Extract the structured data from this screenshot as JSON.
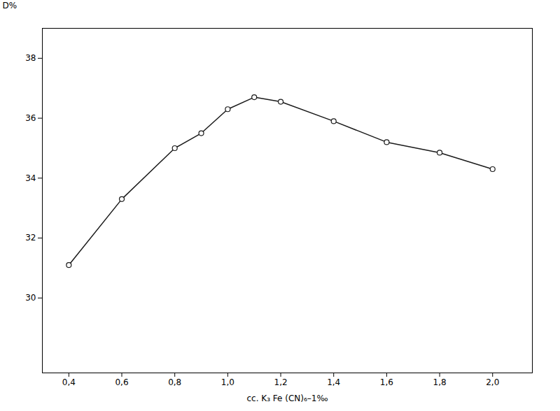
{
  "chart_data": {
    "type": "line",
    "x": [
      0.4,
      0.6,
      0.8,
      0.9,
      1.0,
      1.1,
      1.2,
      1.4,
      1.6,
      1.8,
      2.0
    ],
    "values": [
      31.1,
      33.3,
      35.0,
      35.5,
      36.3,
      36.7,
      36.55,
      35.9,
      35.2,
      34.85,
      34.3
    ],
    "xlabel": "cc. K₃ Fe (CN)₆–1‰",
    "ylabel": "D%",
    "xlim": [
      0.3,
      2.15
    ],
    "ylim": [
      27.5,
      39.0
    ],
    "xticks": [
      {
        "value": 0.4,
        "label": "0,4"
      },
      {
        "value": 0.6,
        "label": "0,6"
      },
      {
        "value": 0.8,
        "label": "0,8"
      },
      {
        "value": 1.0,
        "label": "1,0"
      },
      {
        "value": 1.2,
        "label": "1,2"
      },
      {
        "value": 1.4,
        "label": "1,4"
      },
      {
        "value": 1.6,
        "label": "1,6"
      },
      {
        "value": 1.8,
        "label": "1,8"
      },
      {
        "value": 2.0,
        "label": "2,0"
      }
    ],
    "yticks": [
      30,
      32,
      34,
      36,
      38
    ],
    "color": "#1a1a1a",
    "marker": "circle",
    "grid": false
  }
}
